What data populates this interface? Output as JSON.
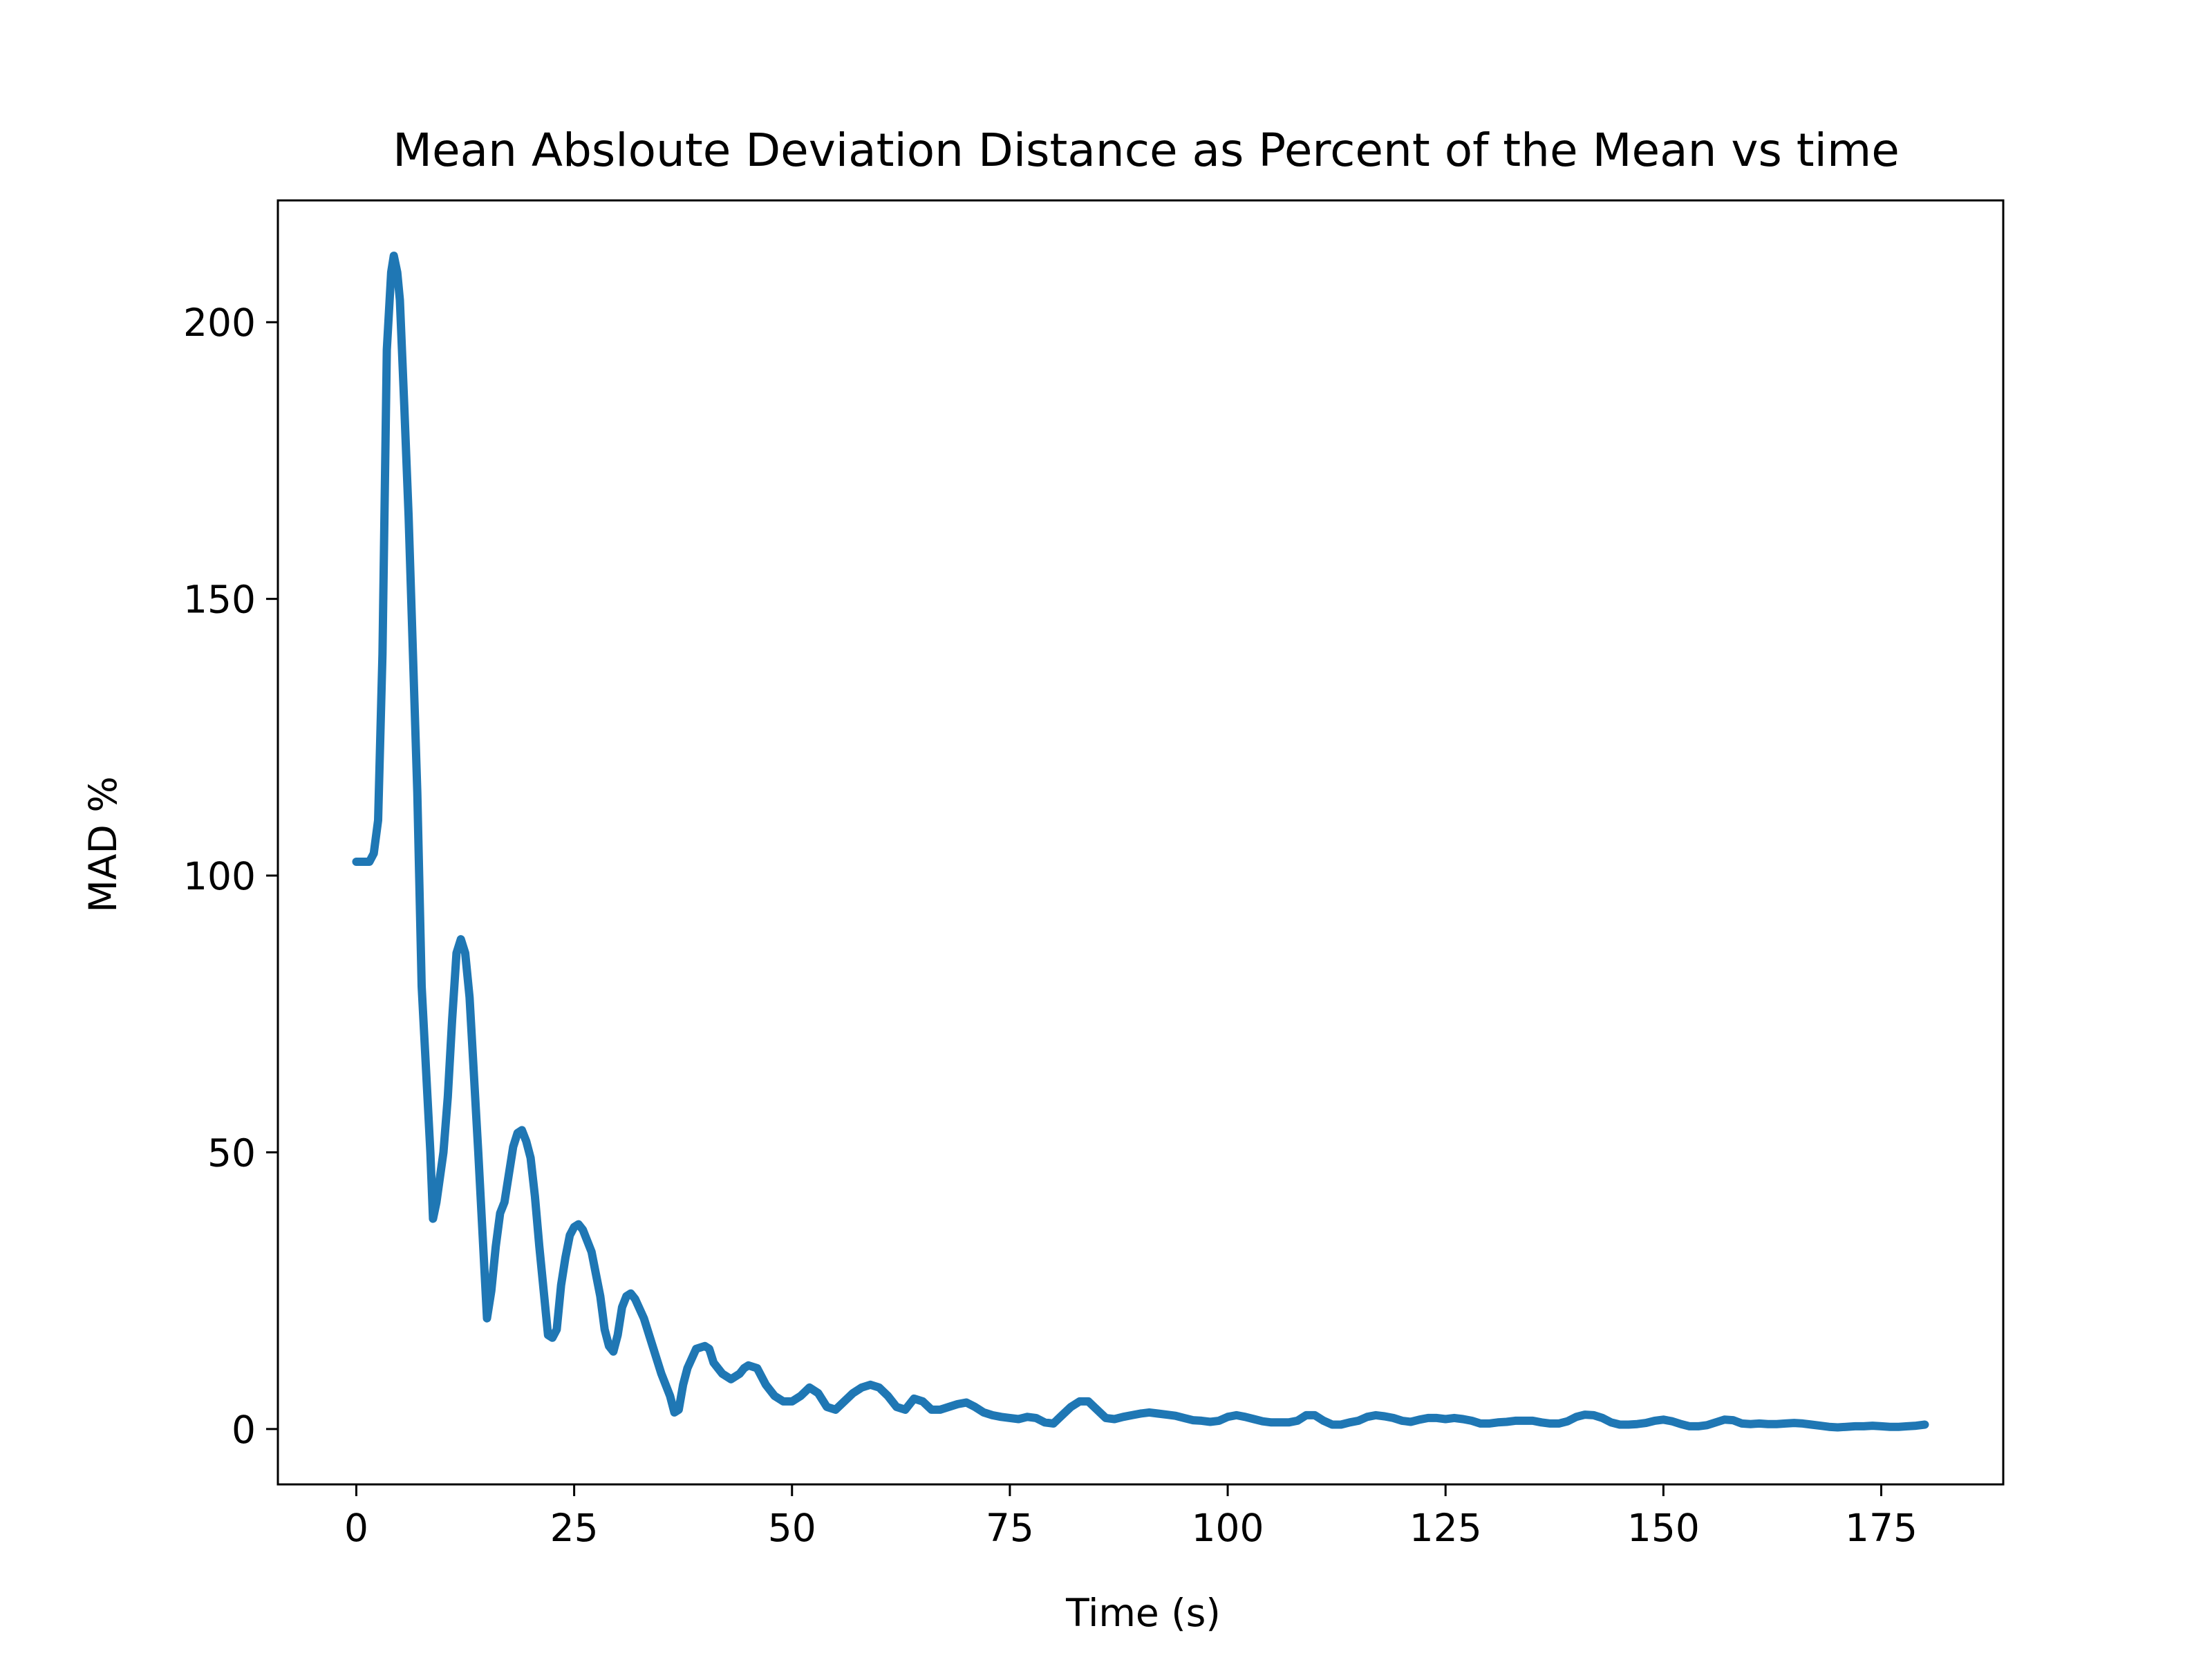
{
  "chart_data": {
    "type": "line",
    "title": "Mean Absloute Deviation Distance as Percent of the Mean vs time",
    "xlabel": "Time (s)",
    "ylabel": "MAD %",
    "xlim": [
      -9,
      189
    ],
    "ylim": [
      -10,
      222
    ],
    "xticks": [
      {
        "value": 0,
        "label": "0"
      },
      {
        "value": 25,
        "label": "25"
      },
      {
        "value": 50,
        "label": "50"
      },
      {
        "value": 75,
        "label": "75"
      },
      {
        "value": 100,
        "label": "100"
      },
      {
        "value": 125,
        "label": "125"
      },
      {
        "value": 150,
        "label": "150"
      },
      {
        "value": 175,
        "label": "175"
      }
    ],
    "yticks": [
      {
        "value": 0,
        "label": "0"
      },
      {
        "value": 50,
        "label": "50"
      },
      {
        "value": 100,
        "label": "100"
      },
      {
        "value": 150,
        "label": "150"
      },
      {
        "value": 200,
        "label": "200"
      }
    ],
    "grid": false,
    "series": [
      {
        "color": "#1f77b4",
        "points": [
          [
            0,
            102.5
          ],
          [
            1.5,
            102.5
          ],
          [
            2,
            104
          ],
          [
            2.5,
            110
          ],
          [
            3,
            140
          ],
          [
            3.5,
            195
          ],
          [
            4,
            209
          ],
          [
            4.3,
            212
          ],
          [
            4.7,
            209
          ],
          [
            5,
            204
          ],
          [
            5.5,
            185
          ],
          [
            6,
            165
          ],
          [
            6.5,
            140
          ],
          [
            7,
            115
          ],
          [
            7.5,
            80
          ],
          [
            8,
            65
          ],
          [
            8.5,
            50
          ],
          [
            8.8,
            38
          ],
          [
            9.2,
            41
          ],
          [
            10,
            50
          ],
          [
            10.5,
            60
          ],
          [
            11,
            74
          ],
          [
            11.5,
            86
          ],
          [
            12,
            88.5
          ],
          [
            12.5,
            86
          ],
          [
            13,
            78
          ],
          [
            13.5,
            64
          ],
          [
            14,
            50
          ],
          [
            14.5,
            35
          ],
          [
            15,
            20
          ],
          [
            15.5,
            25
          ],
          [
            16,
            33
          ],
          [
            16.5,
            39
          ],
          [
            17,
            41
          ],
          [
            17.5,
            46
          ],
          [
            18,
            51
          ],
          [
            18.5,
            53.5
          ],
          [
            19,
            54
          ],
          [
            19.5,
            52
          ],
          [
            20,
            49
          ],
          [
            20.5,
            42
          ],
          [
            21,
            33
          ],
          [
            21.5,
            25
          ],
          [
            22,
            17
          ],
          [
            22.5,
            16.5
          ],
          [
            23,
            18
          ],
          [
            23.5,
            26
          ],
          [
            24,
            31
          ],
          [
            24.5,
            35
          ],
          [
            25,
            36.5
          ],
          [
            25.5,
            37
          ],
          [
            26,
            36
          ],
          [
            26.5,
            34
          ],
          [
            27,
            32
          ],
          [
            27.5,
            28
          ],
          [
            28,
            24
          ],
          [
            28.5,
            18
          ],
          [
            29,
            15
          ],
          [
            29.5,
            14
          ],
          [
            30,
            17
          ],
          [
            30.5,
            22
          ],
          [
            31,
            24
          ],
          [
            31.5,
            24.5
          ],
          [
            32,
            23.5
          ],
          [
            33,
            20
          ],
          [
            34,
            15
          ],
          [
            35,
            10
          ],
          [
            36,
            6
          ],
          [
            36.5,
            3
          ],
          [
            37,
            3.5
          ],
          [
            37.5,
            8
          ],
          [
            38,
            11
          ],
          [
            39,
            14.5
          ],
          [
            40,
            15
          ],
          [
            40.5,
            14.5
          ],
          [
            41,
            12
          ],
          [
            42,
            10
          ],
          [
            43,
            9
          ],
          [
            44,
            10
          ],
          [
            44.5,
            11
          ],
          [
            45,
            11.5
          ],
          [
            46,
            11
          ],
          [
            47,
            8
          ],
          [
            48,
            6
          ],
          [
            49,
            5
          ],
          [
            50,
            5
          ],
          [
            51,
            6
          ],
          [
            52,
            7.5
          ],
          [
            53,
            6.5
          ],
          [
            54,
            4
          ],
          [
            55,
            3.5
          ],
          [
            56,
            5
          ],
          [
            57,
            6.5
          ],
          [
            58,
            7.5
          ],
          [
            59,
            8
          ],
          [
            60,
            7.5
          ],
          [
            61,
            6
          ],
          [
            62,
            4
          ],
          [
            63,
            3.5
          ],
          [
            63.5,
            4.5
          ],
          [
            64,
            5.5
          ],
          [
            65,
            5
          ],
          [
            66,
            3.5
          ],
          [
            67,
            3.5
          ],
          [
            68,
            4
          ],
          [
            69,
            4.5
          ],
          [
            70,
            4.8
          ],
          [
            71,
            4
          ],
          [
            72,
            3
          ],
          [
            73,
            2.5
          ],
          [
            74,
            2.2
          ],
          [
            75,
            2
          ],
          [
            76,
            1.8
          ],
          [
            77,
            2.2
          ],
          [
            78,
            2
          ],
          [
            79,
            1.2
          ],
          [
            80,
            1
          ],
          [
            81,
            2.5
          ],
          [
            82,
            4
          ],
          [
            83,
            5
          ],
          [
            84,
            5
          ],
          [
            85,
            3.5
          ],
          [
            86,
            2
          ],
          [
            87,
            1.8
          ],
          [
            88,
            2.2
          ],
          [
            89,
            2.5
          ],
          [
            90,
            2.8
          ],
          [
            91,
            3
          ],
          [
            92,
            2.8
          ],
          [
            93,
            2.6
          ],
          [
            94,
            2.4
          ],
          [
            95,
            2
          ],
          [
            96,
            1.6
          ],
          [
            97,
            1.5
          ],
          [
            98,
            1.3
          ],
          [
            99,
            1.5
          ],
          [
            100,
            2.2
          ],
          [
            101,
            2.5
          ],
          [
            102,
            2.2
          ],
          [
            103,
            1.8
          ],
          [
            104,
            1.4
          ],
          [
            105,
            1.2
          ],
          [
            106,
            1.2
          ],
          [
            107,
            1.2
          ],
          [
            108,
            1.5
          ],
          [
            109,
            2.5
          ],
          [
            110,
            2.5
          ],
          [
            111,
            1.5
          ],
          [
            112,
            0.8
          ],
          [
            113,
            0.8
          ],
          [
            114,
            1.2
          ],
          [
            115,
            1.5
          ],
          [
            116,
            2.2
          ],
          [
            117,
            2.5
          ],
          [
            118,
            2.3
          ],
          [
            119,
            2
          ],
          [
            120,
            1.5
          ],
          [
            121,
            1.3
          ],
          [
            122,
            1.7
          ],
          [
            123,
            2
          ],
          [
            124,
            2
          ],
          [
            125,
            1.8
          ],
          [
            126,
            2
          ],
          [
            127,
            1.8
          ],
          [
            128,
            1.5
          ],
          [
            129,
            1
          ],
          [
            130,
            1
          ],
          [
            131,
            1.2
          ],
          [
            132,
            1.3
          ],
          [
            133,
            1.5
          ],
          [
            134,
            1.5
          ],
          [
            135,
            1.5
          ],
          [
            136,
            1.2
          ],
          [
            137,
            1
          ],
          [
            138,
            1
          ],
          [
            139,
            1.4
          ],
          [
            140,
            2.2
          ],
          [
            141,
            2.6
          ],
          [
            142,
            2.5
          ],
          [
            143,
            2
          ],
          [
            144,
            1.2
          ],
          [
            145,
            0.8
          ],
          [
            146,
            0.8
          ],
          [
            147,
            0.9
          ],
          [
            148,
            1.1
          ],
          [
            149,
            1.5
          ],
          [
            150,
            1.7
          ],
          [
            151,
            1.4
          ],
          [
            152,
            0.9
          ],
          [
            153,
            0.5
          ],
          [
            154,
            0.5
          ],
          [
            155,
            0.7
          ],
          [
            156,
            1.2
          ],
          [
            157,
            1.7
          ],
          [
            158,
            1.6
          ],
          [
            159,
            1
          ],
          [
            160,
            0.9
          ],
          [
            161,
            1
          ],
          [
            162,
            0.9
          ],
          [
            163,
            0.9
          ],
          [
            164,
            1
          ],
          [
            165,
            1.1
          ],
          [
            166,
            1
          ],
          [
            167,
            0.8
          ],
          [
            168,
            0.6
          ],
          [
            169,
            0.4
          ],
          [
            170,
            0.3
          ],
          [
            171,
            0.4
          ],
          [
            172,
            0.5
          ],
          [
            173,
            0.5
          ],
          [
            174,
            0.6
          ],
          [
            175,
            0.5
          ],
          [
            176,
            0.4
          ],
          [
            177,
            0.4
          ],
          [
            178,
            0.5
          ],
          [
            179,
            0.6
          ],
          [
            180,
            0.8
          ]
        ]
      }
    ]
  }
}
